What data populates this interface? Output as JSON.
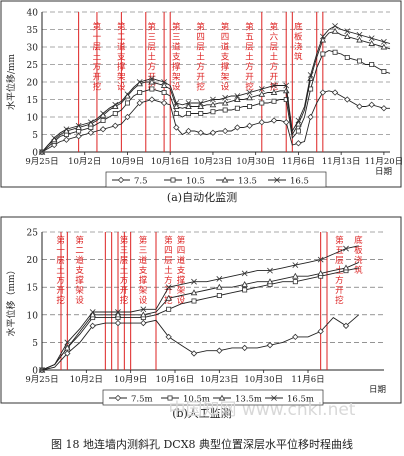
{
  "figure_caption": "图 18 地连墙内测斜孔 DCX8 典型位置深层水平位移时程曲线",
  "watermark": "中国知网  www.cnki.net",
  "chart_data": [
    {
      "type": "line",
      "caption": "(a)自动化监测",
      "ylabel": "水平位移/mm",
      "xlabel": "日期",
      "ylim": [
        0,
        40
      ],
      "yticks": [
        0,
        5,
        10,
        15,
        20,
        25,
        30,
        35,
        40
      ],
      "x_tick_labels": [
        "9月25日",
        "10月2日",
        "10月9日",
        "10月16日",
        "10月23日",
        "10月30日",
        "11月6日",
        "11月13日",
        "11月20日"
      ],
      "grid": "horizontal dashed",
      "legend_position": "bottom",
      "series": [
        {
          "name": "7.5",
          "marker": "diamond",
          "x": [
            0,
            1,
            2,
            3,
            4,
            5,
            6,
            7,
            8,
            9,
            10,
            11,
            12,
            13,
            14,
            15,
            16,
            17,
            18,
            19,
            20,
            21,
            22,
            23,
            24,
            25,
            26,
            27,
            28,
            29,
            30,
            31,
            32,
            33,
            34,
            35,
            36,
            37,
            38,
            39,
            40,
            41,
            42,
            43,
            44,
            45,
            46,
            47,
            48,
            49,
            50,
            51,
            52,
            53,
            54,
            55,
            56,
            57
          ],
          "y": [
            0,
            1,
            2,
            3,
            3.5,
            4,
            4.5,
            5,
            5.5,
            6,
            6.5,
            7,
            7.5,
            8,
            10,
            12,
            14,
            14.5,
            15,
            14.5,
            14,
            13.5,
            7,
            5,
            6,
            6,
            5.5,
            5,
            5.5,
            6,
            6,
            6,
            7,
            7,
            7.5,
            8,
            8.5,
            8.5,
            9,
            9,
            8.5,
            2,
            2.5,
            3,
            10,
            14,
            17,
            17.5,
            17,
            16,
            15,
            14,
            13,
            13,
            13.5,
            13,
            12.5,
            12.5
          ]
        },
        {
          "name": "10.5",
          "marker": "square",
          "x": [
            0,
            1,
            2,
            3,
            4,
            5,
            6,
            7,
            8,
            9,
            10,
            11,
            12,
            13,
            14,
            15,
            16,
            17,
            18,
            19,
            20,
            21,
            22,
            23,
            24,
            25,
            26,
            27,
            28,
            29,
            30,
            31,
            32,
            33,
            34,
            35,
            36,
            37,
            38,
            39,
            40,
            41,
            42,
            43,
            44,
            45,
            46,
            47,
            48,
            49,
            50,
            51,
            52,
            53,
            54,
            55,
            56,
            57
          ],
          "y": [
            0,
            1.5,
            3,
            4.5,
            5,
            5.5,
            6,
            6.5,
            7,
            8,
            9,
            10,
            11,
            12,
            14,
            16,
            17,
            17.5,
            18,
            17.5,
            17,
            16,
            11,
            10,
            11,
            11,
            11,
            11,
            11.5,
            12,
            12,
            12,
            12.5,
            13,
            13,
            13.5,
            14,
            14,
            14.5,
            15,
            15,
            4,
            6,
            10,
            18,
            24,
            28,
            29,
            28.5,
            28,
            27,
            26.5,
            26,
            25,
            25,
            24,
            23,
            22.5
          ]
        },
        {
          "name": "13.5",
          "marker": "triangle",
          "x": [
            0,
            1,
            2,
            3,
            4,
            5,
            6,
            7,
            8,
            9,
            10,
            11,
            12,
            13,
            14,
            15,
            16,
            17,
            18,
            19,
            20,
            21,
            22,
            23,
            24,
            25,
            26,
            27,
            28,
            29,
            30,
            31,
            32,
            33,
            34,
            35,
            36,
            37,
            38,
            39,
            40,
            41,
            42,
            43,
            44,
            45,
            46,
            47,
            48,
            49,
            50,
            51,
            52,
            53,
            54,
            55,
            56,
            57
          ],
          "y": [
            0,
            2,
            3.5,
            5,
            6,
            6.5,
            7,
            7.5,
            8,
            9,
            10.5,
            12,
            13,
            14,
            16,
            18,
            19.5,
            20,
            20,
            19.5,
            19,
            18,
            13,
            12.5,
            13,
            13,
            13,
            13.5,
            13.5,
            14,
            14,
            14.5,
            15,
            15,
            15.5,
            16,
            16.5,
            17,
            17,
            17.5,
            17.5,
            5,
            8,
            12,
            21,
            27,
            32,
            34,
            34.5,
            33.5,
            33,
            32.5,
            32,
            31.5,
            31,
            30.5,
            30,
            29.5
          ]
        },
        {
          "name": "16.5",
          "marker": "x",
          "x": [
            0,
            1,
            2,
            3,
            4,
            5,
            6,
            7,
            8,
            9,
            10,
            11,
            12,
            13,
            14,
            15,
            16,
            17,
            18,
            19,
            20,
            21,
            22,
            23,
            24,
            25,
            26,
            27,
            28,
            29,
            30,
            31,
            32,
            33,
            34,
            35,
            36,
            37,
            38,
            39,
            40,
            41,
            42,
            43,
            44,
            45,
            46,
            47,
            48,
            49,
            50,
            51,
            52,
            53,
            54,
            55,
            56,
            57
          ],
          "y": [
            0,
            2,
            4,
            5.5,
            6.5,
            7,
            7.5,
            8,
            8.5,
            9.5,
            11,
            12.5,
            13.5,
            14.5,
            16.5,
            18.5,
            20,
            20.5,
            21,
            20.5,
            20,
            19,
            14,
            13.5,
            14,
            14,
            14,
            14.5,
            15,
            15,
            15.5,
            16,
            16,
            16.5,
            17,
            17.5,
            18,
            18.5,
            19,
            19,
            19,
            6,
            9,
            13,
            22,
            28,
            33,
            35,
            36,
            35,
            34.5,
            34,
            33.5,
            33,
            32.5,
            32,
            31.5,
            31
          ]
        }
      ],
      "annotations": [
        "第一层土方开挖",
        "第二道支撑架设",
        "第三层土方开挖",
        "第三道支撑架设",
        "第四层土方开挖",
        "第四道支撑架设",
        "第五层土方开挖",
        "第六层土方开挖",
        "底板浇筑"
      ]
    },
    {
      "type": "line",
      "caption": "(b)人工监测",
      "ylabel": "水平位移（mm）",
      "xlabel": "日期",
      "ylim": [
        0,
        25
      ],
      "yticks": [
        0,
        5,
        10,
        15,
        20,
        25
      ],
      "x_tick_labels": [
        "9月25日",
        "10月2日",
        "10月9日",
        "10月16日",
        "10月23日",
        "10月30日",
        "11月6日"
      ],
      "grid": "horizontal dashed",
      "legend_position": "bottom",
      "series": [
        {
          "name": "7.5m",
          "marker": "diamond",
          "x": [
            0,
            2,
            4,
            6,
            8,
            10,
            12,
            14,
            16,
            18,
            20,
            22,
            24,
            26,
            28,
            30,
            32,
            34,
            36,
            38,
            40,
            42,
            44,
            46,
            48,
            50
          ],
          "y": [
            0,
            0.5,
            3,
            5,
            8,
            8.5,
            8.5,
            8.5,
            8.5,
            9,
            6,
            4.5,
            3,
            3.5,
            3.5,
            4,
            4,
            4,
            4.5,
            5,
            6,
            6,
            7,
            9.5,
            8,
            10
          ]
        },
        {
          "name": "10.5m",
          "marker": "square",
          "x": [
            0,
            2,
            4,
            6,
            8,
            10,
            12,
            14,
            16,
            18,
            20,
            22,
            24,
            26,
            28,
            30,
            32,
            34,
            36,
            38,
            40,
            42,
            44,
            46,
            48,
            50
          ],
          "y": [
            0,
            1,
            4,
            6.5,
            9.5,
            9.5,
            9.5,
            9.5,
            9.5,
            10,
            11,
            12,
            12.5,
            13,
            13.5,
            14,
            14.5,
            15,
            15.5,
            16,
            16,
            16.5,
            17,
            17.5,
            18,
            18.5
          ]
        },
        {
          "name": "13.5m",
          "marker": "triangle",
          "x": [
            0,
            2,
            4,
            6,
            8,
            10,
            12,
            14,
            16,
            18,
            20,
            22,
            24,
            26,
            28,
            30,
            32,
            34,
            36,
            38,
            40,
            42,
            44,
            46,
            48,
            50
          ],
          "y": [
            0,
            1,
            4,
            7,
            10,
            10,
            10,
            10,
            10,
            10.5,
            13,
            13.5,
            14,
            14.5,
            15,
            15,
            15.5,
            16,
            16,
            16.5,
            17,
            17,
            17.5,
            18,
            18.5,
            19.5
          ]
        },
        {
          "name": "16.5m",
          "marker": "x",
          "x": [
            0,
            2,
            4,
            6,
            8,
            10,
            12,
            14,
            16,
            18,
            20,
            22,
            24,
            26,
            28,
            30,
            32,
            34,
            36,
            38,
            40,
            42,
            44,
            46,
            48,
            50
          ],
          "y": [
            0,
            1,
            5,
            7.5,
            10.5,
            10.5,
            10.5,
            10.5,
            11,
            11,
            15,
            15.5,
            16,
            16,
            16.5,
            17,
            17.5,
            18,
            18,
            18.5,
            19,
            19.5,
            20,
            21,
            22,
            22.5
          ]
        }
      ],
      "annotations": [
        "第一层土方开挖",
        "第二道支撑架设",
        "第三层土方开挖",
        "第三道支撑架设",
        "第四层土方开挖",
        "第四道支撑架设",
        "第五层土方开挖",
        "底板浇筑"
      ]
    }
  ]
}
